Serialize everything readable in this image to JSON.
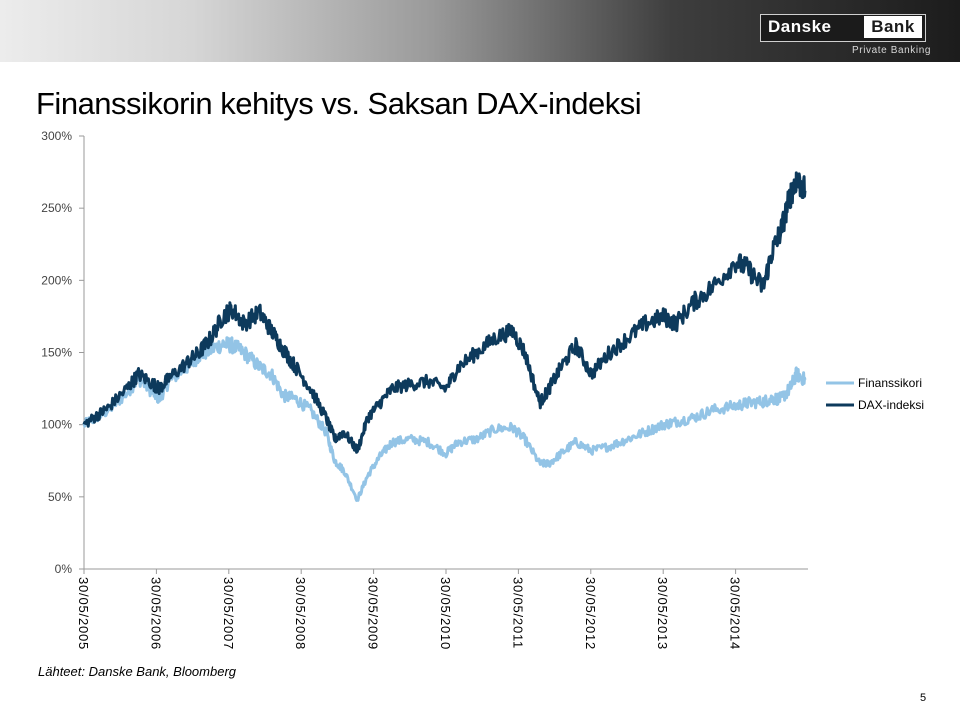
{
  "header": {
    "logo_left": "Danske",
    "logo_right": "Bank",
    "logo_sub": "Private Banking"
  },
  "title": "Finanssikorin kehitys vs. Saksan DAX-indeksi",
  "source": "Lähteet: Danske Bank, Bloomberg",
  "page_number": "5",
  "colors": {
    "finanssikori": "#93c4e6",
    "dax": "#0d3a5c",
    "axis": "#9a9a9a"
  },
  "chart_data": {
    "type": "line",
    "title": "Finanssikorin kehitys vs. Saksan DAX-indeksi",
    "xlabel": "",
    "ylabel": "",
    "ylim": [
      0,
      300
    ],
    "y_ticks": [
      "0%",
      "50%",
      "100%",
      "150%",
      "200%",
      "250%",
      "300%"
    ],
    "x_ticks": [
      "30/05/2005",
      "30/05/2006",
      "30/05/2007",
      "30/05/2008",
      "30/05/2009",
      "30/05/2010",
      "30/05/2011",
      "30/05/2012",
      "30/05/2013",
      "30/05/2014"
    ],
    "grid": false,
    "legend": "right",
    "series": [
      {
        "name": "Finanssikori",
        "x": [
          "2005-05-30",
          "2005-08-01",
          "2005-10-01",
          "2006-01-01",
          "2006-03-01",
          "2006-05-15",
          "2006-06-15",
          "2006-08-01",
          "2006-11-01",
          "2007-01-01",
          "2007-03-01",
          "2007-05-01",
          "2007-06-15",
          "2007-08-15",
          "2007-11-01",
          "2008-01-01",
          "2008-03-01",
          "2008-05-01",
          "2008-07-15",
          "2008-10-01",
          "2008-11-15",
          "2009-01-01",
          "2009-03-09",
          "2009-05-01",
          "2009-07-01",
          "2009-09-01",
          "2009-12-01",
          "2010-03-01",
          "2010-05-30",
          "2010-08-01",
          "2010-11-01",
          "2011-02-01",
          "2011-05-01",
          "2011-07-01",
          "2011-09-15",
          "2011-11-01",
          "2012-01-01",
          "2012-03-15",
          "2012-06-01",
          "2012-09-01",
          "2012-12-01",
          "2013-03-01",
          "2013-05-30",
          "2013-08-01",
          "2013-11-01",
          "2014-02-01",
          "2014-05-30",
          "2014-08-01",
          "2014-10-15",
          "2014-12-01",
          "2015-01-15",
          "2015-02-28",
          "2015-04-01",
          "2015-05-15"
        ],
        "values": [
          100,
          105,
          110,
          122,
          132,
          122,
          118,
          130,
          140,
          148,
          152,
          156,
          155,
          150,
          140,
          135,
          120,
          118,
          110,
          95,
          75,
          68,
          48,
          65,
          78,
          88,
          90,
          88,
          80,
          88,
          90,
          97,
          98,
          90,
          73,
          73,
          80,
          88,
          82,
          85,
          90,
          95,
          100,
          102,
          105,
          110,
          113,
          115,
          116,
          118,
          118,
          125,
          135,
          131
        ]
      },
      {
        "name": "DAX-indeksi",
        "x": [
          "2005-05-30",
          "2005-08-01",
          "2005-10-01",
          "2006-01-01",
          "2006-03-01",
          "2006-05-15",
          "2006-06-15",
          "2006-08-01",
          "2006-11-01",
          "2007-01-01",
          "2007-03-01",
          "2007-05-01",
          "2007-06-15",
          "2007-08-15",
          "2007-11-01",
          "2008-01-01",
          "2008-03-01",
          "2008-05-01",
          "2008-07-15",
          "2008-10-01",
          "2008-11-15",
          "2009-01-01",
          "2009-03-09",
          "2009-05-01",
          "2009-07-01",
          "2009-09-01",
          "2009-12-01",
          "2010-03-01",
          "2010-05-30",
          "2010-08-01",
          "2010-11-01",
          "2011-02-01",
          "2011-05-01",
          "2011-07-01",
          "2011-09-15",
          "2011-11-01",
          "2012-01-01",
          "2012-03-15",
          "2012-06-01",
          "2012-09-01",
          "2012-12-01",
          "2013-03-01",
          "2013-05-30",
          "2013-08-01",
          "2013-11-01",
          "2014-02-01",
          "2014-05-30",
          "2014-08-01",
          "2014-10-15",
          "2014-12-01",
          "2015-01-15",
          "2015-02-28",
          "2015-04-01",
          "2015-05-15"
        ],
        "values": [
          100,
          106,
          112,
          125,
          135,
          128,
          125,
          132,
          143,
          150,
          160,
          175,
          180,
          170,
          178,
          165,
          152,
          140,
          125,
          105,
          90,
          95,
          82,
          105,
          115,
          125,
          128,
          130,
          125,
          140,
          150,
          160,
          165,
          150,
          115,
          125,
          140,
          155,
          135,
          150,
          160,
          170,
          175,
          170,
          185,
          195,
          213,
          208,
          195,
          220,
          235,
          258,
          270,
          262
        ]
      }
    ]
  }
}
